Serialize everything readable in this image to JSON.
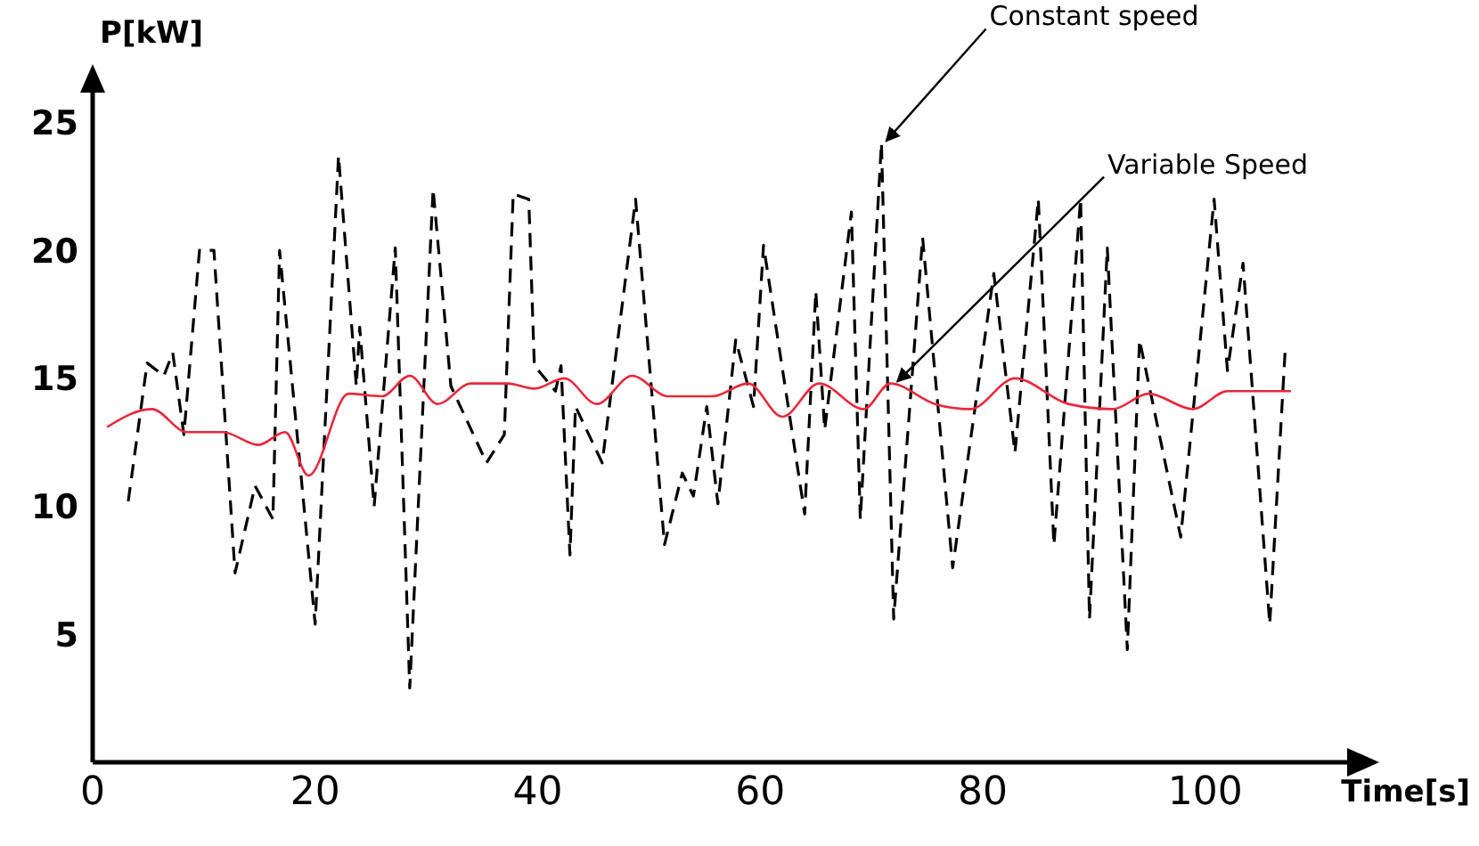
{
  "chart_data": {
    "type": "line",
    "xlabel": "Time[s]",
    "ylabel": "P[kW]",
    "xlim": [
      0,
      115
    ],
    "ylim": [
      0,
      27
    ],
    "xticks": [
      0,
      20,
      40,
      60,
      80,
      100
    ],
    "yticks": [
      5,
      10,
      15,
      20,
      25
    ],
    "grid": false,
    "legend": false,
    "marker": "none",
    "annotations": [
      {
        "text": "Constant speed",
        "x": 71,
        "y": 24.2
      },
      {
        "text": "Variable Speed",
        "x": 72,
        "y": 14.8
      }
    ],
    "series": [
      {
        "color": "#000000",
        "line_style": "dashed",
        "x": [
          3.2,
          4.9,
          6.4,
          7.2,
          8.2,
          9.6,
          10.9,
          12.8,
          14.6,
          16.2,
          16.8,
          20,
          22.1,
          23.7,
          24,
          25.3,
          27.2,
          28.5,
          30.6,
          32.2,
          35.4,
          37,
          37.8,
          39.2,
          39.7,
          41.6,
          42.1,
          42.9,
          43.4,
          45.8,
          48.8,
          51.4,
          53,
          54,
          55.2,
          56.2,
          57.8,
          59.4,
          60.3,
          61.6,
          64,
          65,
          65.8,
          68.2,
          69,
          70.9,
          72,
          74.6,
          77.3,
          81,
          82.9,
          85,
          86.4,
          88.8,
          89.6,
          91.2,
          93,
          94.1,
          97.8,
          100.8,
          102,
          103.4,
          105.8,
          107.2
        ],
        "values": [
          10.2,
          15.6,
          15.1,
          16,
          12.8,
          20,
          20,
          7.4,
          10.8,
          9.5,
          20,
          5.4,
          23.7,
          14.7,
          17,
          10,
          20.1,
          2.9,
          22.4,
          14.7,
          11.7,
          12.8,
          22.2,
          22,
          15.5,
          14.5,
          15.5,
          8.1,
          13.9,
          11.7,
          22,
          8.5,
          11.3,
          10.4,
          13.9,
          10.1,
          16.5,
          13.9,
          20.2,
          16.5,
          9.7,
          18.4,
          13,
          21.5,
          9.5,
          24.2,
          5.6,
          20.5,
          7.6,
          19.1,
          12.1,
          22,
          8.5,
          22,
          5.6,
          20.1,
          4.4,
          16.5,
          8.8,
          22,
          15.3,
          19.5,
          5.4,
          16.2
        ]
      },
      {
        "color": "#e8283c",
        "line_style": "solid",
        "x": [
          1.3,
          5.3,
          8.5,
          11.7,
          14.9,
          17.3,
          19.4,
          23,
          26,
          28.5,
          31,
          34,
          37.3,
          39.7,
          42.4,
          45.3,
          48.5,
          51.7,
          55.7,
          58.9,
          62,
          65.3,
          69.3,
          71.7,
          75.7,
          78.9,
          82.9,
          87.7,
          91.7,
          94.9,
          98.9,
          102,
          107.7
        ],
        "values": [
          13.1,
          13.8,
          12.9,
          12.9,
          12.4,
          12.9,
          11.2,
          14.4,
          14.3,
          15.1,
          14,
          14.8,
          14.8,
          14.6,
          15,
          14,
          15.1,
          14.3,
          14.3,
          14.8,
          13.5,
          14.8,
          13.8,
          14.8,
          14,
          13.8,
          15,
          14,
          13.8,
          14.4,
          13.8,
          14.5,
          14.5
        ]
      }
    ]
  }
}
